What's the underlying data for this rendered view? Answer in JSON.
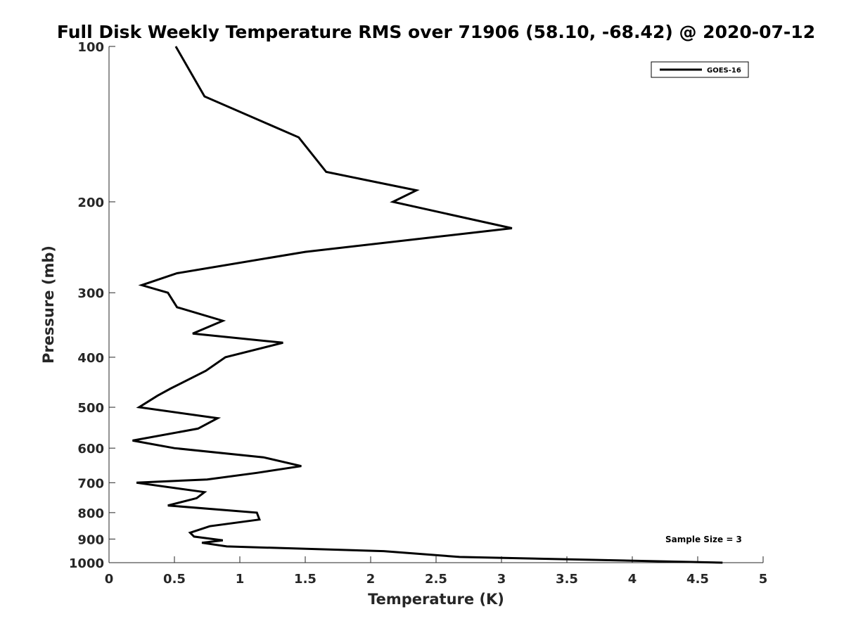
{
  "chart_data": {
    "type": "line",
    "title": "Full Disk Weekly Temperature RMS over 71906 (58.10, -68.42) @ 2020-07-12",
    "xlabel": "Temperature (K)",
    "ylabel": "Pressure (mb)",
    "xlim": [
      0,
      5
    ],
    "ylim": [
      100,
      1000
    ],
    "y_scale": "log",
    "y_reversed": true,
    "x_ticks": [
      "0",
      "0.5",
      "1",
      "1.5",
      "2",
      "2.5",
      "3",
      "3.5",
      "4",
      "4.5",
      "5"
    ],
    "x_tick_values": [
      0,
      0.5,
      1,
      1.5,
      2,
      2.5,
      3,
      3.5,
      4,
      4.5,
      5
    ],
    "y_ticks": [
      "100",
      "200",
      "300",
      "400",
      "500",
      "600",
      "700",
      "800",
      "900",
      "1000"
    ],
    "y_tick_values": [
      100,
      200,
      300,
      400,
      500,
      600,
      700,
      800,
      900,
      1000
    ],
    "grid": false,
    "legend_position": "top-right",
    "annotation": "Sample Size = 3",
    "series": [
      {
        "name": "GOES-16",
        "color": "#000000",
        "points": [
          [
            0.51,
            100
          ],
          [
            0.73,
            125
          ],
          [
            1.45,
            150
          ],
          [
            1.66,
            175
          ],
          [
            2.35,
            190
          ],
          [
            2.17,
            200
          ],
          [
            3.08,
            225
          ],
          [
            1.5,
            250
          ],
          [
            0.52,
            275
          ],
          [
            0.25,
            290
          ],
          [
            0.45,
            300
          ],
          [
            0.52,
            320
          ],
          [
            0.87,
            340
          ],
          [
            0.64,
            360
          ],
          [
            1.33,
            375
          ],
          [
            0.89,
            400
          ],
          [
            0.74,
            425
          ],
          [
            0.47,
            460
          ],
          [
            0.37,
            475
          ],
          [
            0.23,
            500
          ],
          [
            0.83,
            525
          ],
          [
            0.68,
            550
          ],
          [
            0.18,
            580
          ],
          [
            0.5,
            600
          ],
          [
            1.18,
            625
          ],
          [
            1.47,
            650
          ],
          [
            1.13,
            670
          ],
          [
            0.75,
            690
          ],
          [
            0.21,
            700
          ],
          [
            0.73,
            730
          ],
          [
            0.67,
            750
          ],
          [
            0.45,
            775
          ],
          [
            1.13,
            800
          ],
          [
            1.15,
            825
          ],
          [
            0.77,
            850
          ],
          [
            0.62,
            875
          ],
          [
            0.65,
            890
          ],
          [
            0.87,
            905
          ],
          [
            0.71,
            915
          ],
          [
            0.9,
            930
          ],
          [
            2.1,
            950
          ],
          [
            2.68,
            975
          ],
          [
            4.69,
            1000
          ]
        ]
      }
    ]
  }
}
